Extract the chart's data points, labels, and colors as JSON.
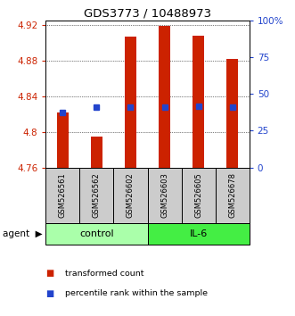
{
  "title": "GDS3773 / 10488973",
  "samples": [
    "GSM526561",
    "GSM526562",
    "GSM526602",
    "GSM526603",
    "GSM526605",
    "GSM526678"
  ],
  "bar_tops": [
    4.822,
    4.795,
    4.907,
    4.919,
    4.908,
    4.882
  ],
  "bar_base": 4.76,
  "percentile_values": [
    4.822,
    4.828,
    4.828,
    4.828,
    4.829,
    4.828
  ],
  "ylim": [
    4.76,
    4.925
  ],
  "yticks_left": [
    4.76,
    4.8,
    4.84,
    4.88,
    4.92
  ],
  "yticks_right_pct": [
    0,
    25,
    50,
    75,
    100
  ],
  "bar_color": "#cc2200",
  "percentile_color": "#2244cc",
  "control_color": "#aaffaa",
  "il6_color": "#44ee44",
  "sample_bg_color": "#cccccc",
  "legend_bar": "transformed count",
  "legend_pct": "percentile rank within the sample",
  "control_samples": 3,
  "il6_samples": 3
}
